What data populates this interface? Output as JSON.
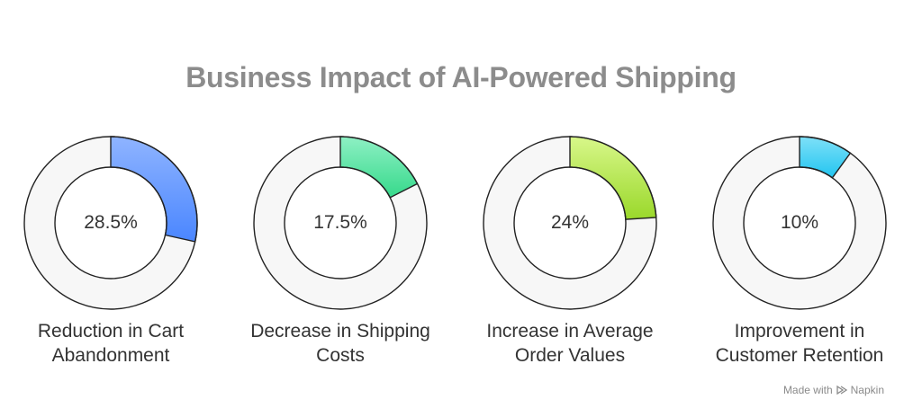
{
  "title": "Business Impact of AI-Powered Shipping",
  "chart_data": {
    "type": "pie",
    "variant": "donut",
    "items": [
      {
        "value": 28.5,
        "label": "28.5%",
        "caption_lines": [
          "Reduction in Cart",
          "Abandonment"
        ],
        "color_top": "#8fb4ff",
        "color_bottom": "#4a86ff"
      },
      {
        "value": 17.5,
        "label": "17.5%",
        "caption_lines": [
          "Decrease in Shipping",
          "Costs"
        ],
        "color_top": "#8ef0c4",
        "color_bottom": "#36d98b"
      },
      {
        "value": 24,
        "label": "24%",
        "caption_lines": [
          "Increase in Average",
          "Order Values"
        ],
        "color_top": "#d8f78a",
        "color_bottom": "#9ad82a"
      },
      {
        "value": 10,
        "label": "10%",
        "caption_lines": [
          "Improvement in",
          "Customer Retention"
        ],
        "color_top": "#7ee0f8",
        "color_bottom": "#22c5f0"
      }
    ],
    "track_color": "#f7f7f7",
    "outline_color": "#222222"
  },
  "watermark": {
    "text_before": "Made with",
    "text_after": "Napkin"
  }
}
